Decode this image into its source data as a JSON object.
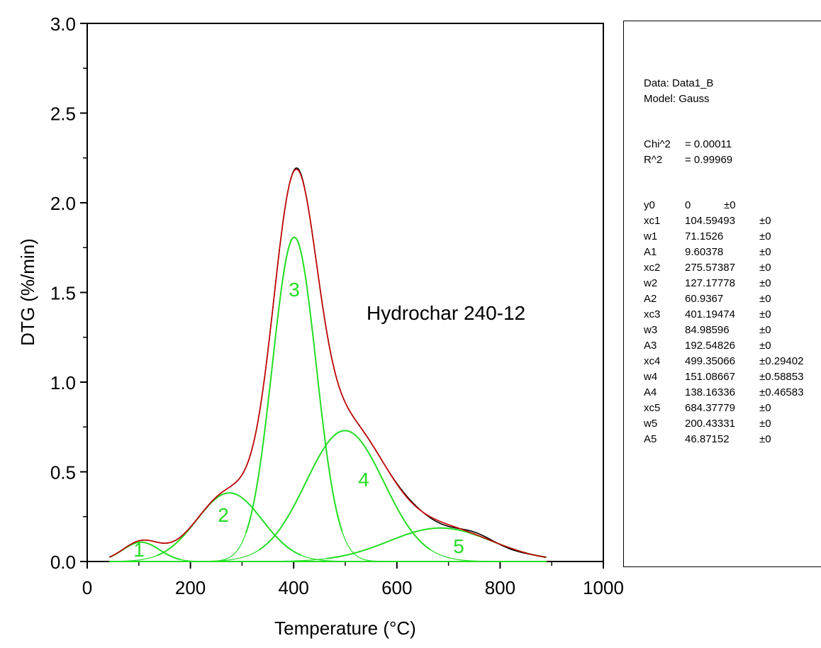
{
  "chart_data": {
    "type": "line",
    "title": "",
    "xlabel": "Temperature (°C)",
    "ylabel": "DTG (%/min)",
    "xlim": [
      0,
      1000
    ],
    "ylim": [
      0,
      3.0
    ],
    "xticks": [
      "0",
      "200",
      "400",
      "600",
      "800",
      "1000"
    ],
    "yticks": [
      "0.0",
      "0.5",
      "1.0",
      "1.5",
      "2.0",
      "2.5",
      "3.0"
    ],
    "annotation": "Hydrochar 240-12",
    "colors": {
      "measured": "#000000",
      "fit": "#cc0000",
      "peaks": "#22dd22"
    },
    "x_range": [
      43,
      890
    ],
    "peaks": [
      {
        "label": "1",
        "xc": 104.59493,
        "w": 71.1526,
        "A": 9.60378
      },
      {
        "label": "2",
        "xc": 275.57387,
        "w": 127.17778,
        "A": 60.9367
      },
      {
        "label": "3",
        "xc": 401.19474,
        "w": 84.98596,
        "A": 192.54826
      },
      {
        "label": "4",
        "xc": 499.35066,
        "w": 151.08667,
        "A": 138.16336
      },
      {
        "label": "5",
        "xc": 684.37779,
        "w": 200.43331,
        "A": 46.87152
      }
    ]
  },
  "stats": {
    "data_line": "Data: Data1_B",
    "model_line": "Model: Gauss",
    "chi_name": "Chi^2",
    "chi_value": "= 0.00011",
    "r_name": "R^2",
    "r_value": "= 0.99969",
    "y0": {
      "name": "y0",
      "value": "0",
      "err": "±0"
    },
    "params": [
      {
        "name": "xc1",
        "value": "104.59493",
        "err": "±0"
      },
      {
        "name": "w1",
        "value": "71.1526",
        "err": "±0"
      },
      {
        "name": "A1",
        "value": "9.60378",
        "err": "±0"
      },
      {
        "name": "xc2",
        "value": "275.57387",
        "err": "±0"
      },
      {
        "name": "w2",
        "value": "127.17778",
        "err": "±0"
      },
      {
        "name": "A2",
        "value": "60.9367",
        "err": "±0"
      },
      {
        "name": "xc3",
        "value": "401.19474",
        "err": "±0"
      },
      {
        "name": "w3",
        "value": "84.98596",
        "err": "±0"
      },
      {
        "name": "A3",
        "value": "192.54826",
        "err": "±0"
      },
      {
        "name": "xc4",
        "value": "499.35066",
        "err": "±0.29402"
      },
      {
        "name": "w4",
        "value": "151.08667",
        "err": "±0.58853"
      },
      {
        "name": "A4",
        "value": "138.16336",
        "err": "±0.46583"
      },
      {
        "name": "xc5",
        "value": "684.37779",
        "err": "±0"
      },
      {
        "name": "w5",
        "value": "200.43331",
        "err": "±0"
      },
      {
        "name": "A5",
        "value": "46.87152",
        "err": "±0"
      }
    ]
  }
}
